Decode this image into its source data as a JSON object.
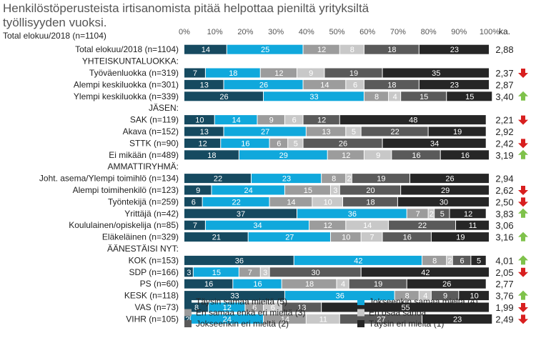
{
  "title": "Henkilöstöperusteista irtisanomista pitää helpottaa pieniltä yrityksiltä\ntyöllisyyden vuoksi.",
  "subtitle": "Total elokuu/2018 (n=1104)",
  "colors": {
    "s5": "#164a60",
    "s4": "#10a8dc",
    "s3": "#9c9c9c",
    "s2": "#c8c8c8",
    "s1": "#5a5a5a",
    "s0": "#262626",
    "up": "#7fc24b",
    "down": "#d81f1f"
  },
  "chart_data": {
    "type": "bar",
    "stacked": true,
    "orientation": "horizontal",
    "xlim": [
      0,
      100
    ],
    "x_ticks": [
      "0%",
      "10%",
      "20%",
      "30%",
      "40%",
      "50%",
      "60%",
      "70%",
      "80%",
      "90%",
      "100%"
    ],
    "avg_header": "ka.",
    "legend": [
      "Täysin samaa mieltä (5)",
      "Jokseenkin samaa mieltä (4)",
      "En samaa enkä eri mieltä (3)",
      "En osaa sanoa",
      "Jokseenkin eri mieltä (2)",
      "Täysin eri mieltä (1)"
    ],
    "rows": [
      {
        "label": "Total elokuu/2018 (n=1104)",
        "values": [
          14,
          25,
          12,
          8,
          18,
          23
        ],
        "avg": "2,88",
        "trend": "none"
      },
      {
        "label": "YHTEISKUNTALUOKKA:",
        "header": true
      },
      {
        "label": "Työväenluokka (n=319)",
        "values": [
          7,
          18,
          12,
          9,
          19,
          35
        ],
        "avg": "2,37",
        "trend": "down"
      },
      {
        "label": "Alempi keskiluokka (n=301)",
        "values": [
          13,
          26,
          14,
          6,
          18,
          23
        ],
        "avg": "2,87",
        "trend": "none"
      },
      {
        "label": "Ylempi keskiluokka (n=339)",
        "values": [
          26,
          33,
          8,
          4,
          15,
          15
        ],
        "avg": "3,40",
        "trend": "up"
      },
      {
        "label": "JÄSEN:",
        "header": true
      },
      {
        "label": "SAK (n=119)",
        "values": [
          10,
          14,
          9,
          6,
          12,
          48
        ],
        "avg": "2,21",
        "trend": "down"
      },
      {
        "label": "Akava (n=152)",
        "values": [
          13,
          27,
          13,
          5,
          22,
          19
        ],
        "avg": "2,92",
        "trend": "none"
      },
      {
        "label": "STTK (n=90)",
        "values": [
          12,
          16,
          6,
          5,
          26,
          34
        ],
        "avg": "2,42",
        "trend": "down"
      },
      {
        "label": "Ei mikään (n=489)",
        "values": [
          18,
          29,
          12,
          9,
          16,
          16
        ],
        "avg": "3,19",
        "trend": "up"
      },
      {
        "label": "AMMATTIRYHMÄ:",
        "header": true
      },
      {
        "label": "Joht. asema/Ylempi toimihlö (n=134)",
        "values": [
          22,
          23,
          8,
          2,
          19,
          26
        ],
        "avg": "2,94",
        "trend": "none"
      },
      {
        "label": "Alempi toimihenkilö (n=123)",
        "values": [
          9,
          24,
          15,
          3,
          20,
          29
        ],
        "avg": "2,62",
        "trend": "down"
      },
      {
        "label": "Työntekijä (n=259)",
        "values": [
          6,
          22,
          14,
          10,
          18,
          30
        ],
        "avg": "2,50",
        "trend": "down"
      },
      {
        "label": "Yrittäjä (n=42)",
        "values": [
          37,
          36,
          7,
          2,
          5,
          12
        ],
        "avg": "3,83",
        "trend": "up"
      },
      {
        "label": "Koululainen/opiskelija (n=85)",
        "values": [
          7,
          34,
          12,
          14,
          22,
          11
        ],
        "avg": "3,06",
        "trend": "none"
      },
      {
        "label": "Eläkeläinen (n=329)",
        "values": [
          21,
          27,
          10,
          7,
          16,
          19
        ],
        "avg": "3,16",
        "trend": "up"
      },
      {
        "label": "ÄÄNESTÄISI NYT:",
        "header": true
      },
      {
        "label": "KOK (n=153)",
        "values": [
          36,
          42,
          8,
          2,
          6,
          5
        ],
        "avg": "4,01",
        "trend": "up"
      },
      {
        "label": "SDP (n=166)",
        "values": [
          3,
          15,
          7,
          3,
          30,
          42
        ],
        "avg": "2,05",
        "trend": "down"
      },
      {
        "label": "PS (n=60)",
        "values": [
          16,
          16,
          18,
          4,
          19,
          26
        ],
        "avg": "2,77",
        "trend": "none"
      },
      {
        "label": "KESK (n=118)",
        "values": [
          33,
          36,
          8,
          4,
          9,
          10
        ],
        "avg": "3,76",
        "trend": "up"
      },
      {
        "label": "VAS (n=73)",
        "values": [
          8,
          12,
          6,
          6,
          13,
          55
        ],
        "avg": "1,99",
        "trend": "down"
      },
      {
        "label": "VIHR (n=105)",
        "values": [
          2,
          24,
          14,
          11,
          27,
          23
        ],
        "avg": "2,49",
        "trend": "down"
      }
    ]
  }
}
